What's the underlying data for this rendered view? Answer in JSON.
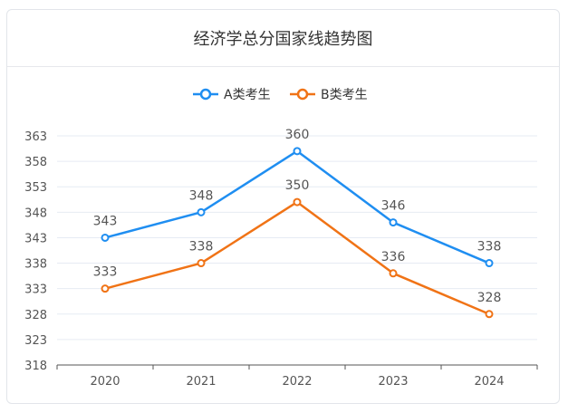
{
  "colors": {
    "series_a": "#1f8ef1",
    "series_b": "#f07316",
    "grid": "#e6ebf3",
    "axis": "#555555",
    "label": "#555555"
  },
  "chart_data": {
    "type": "line",
    "title": "经济学总分国家线趋势图",
    "categories": [
      "2020",
      "2021",
      "2022",
      "2023",
      "2024"
    ],
    "series": [
      {
        "name": "A类考生",
        "values": [
          343,
          348,
          360,
          346,
          338
        ]
      },
      {
        "name": "B类考生",
        "values": [
          333,
          338,
          350,
          336,
          328
        ]
      }
    ],
    "yticks": [
      318,
      323,
      328,
      333,
      338,
      343,
      348,
      353,
      358,
      363
    ],
    "ylim": [
      318,
      363
    ],
    "grid": true,
    "legend": "top-center",
    "data_labels": true,
    "xlabel": "",
    "ylabel": ""
  }
}
